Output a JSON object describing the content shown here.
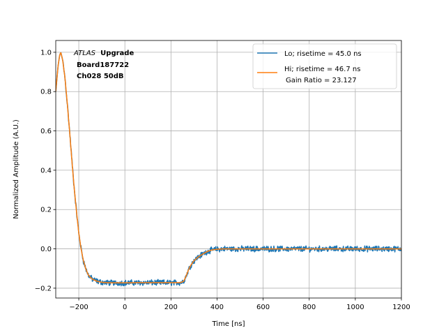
{
  "chart_data": {
    "type": "line",
    "xlabel": "Time [ns]",
    "ylabel": "Normalized Amplitude (A.U.)",
    "xlim": [
      -300,
      1200
    ],
    "ylim": [
      -0.25,
      1.06
    ],
    "xticks": [
      -200,
      0,
      200,
      400,
      600,
      800,
      1000,
      1200
    ],
    "yticks": [
      -0.2,
      0.0,
      0.2,
      0.4,
      0.6,
      0.8,
      1.0
    ],
    "xtick_labels": [
      "−200",
      "0",
      "200",
      "400",
      "600",
      "800",
      "1000",
      "1200"
    ],
    "ytick_labels": [
      "−0.2",
      "0.0",
      "0.2",
      "0.4",
      "0.6",
      "0.8",
      "1.0"
    ],
    "grid": true,
    "legend_position": "top-right",
    "annotation": {
      "experiment_italic": "ATLAS",
      "experiment_bold": "Upgrade",
      "line2": "Board187722",
      "line3": "Ch028 50dB"
    },
    "series": [
      {
        "name": "Lo; risetime = 45.0 ns",
        "color": "#1f77b4",
        "noisy": true,
        "x": [
          -300,
          -290,
          -283,
          -278,
          -270,
          -260,
          -250,
          -240,
          -230,
          -220,
          -210,
          -200,
          -190,
          -180,
          -170,
          -160,
          -150,
          -140,
          -120,
          -100,
          -80,
          -50,
          0,
          50,
          100,
          150,
          200,
          240,
          255,
          265,
          275,
          285,
          300,
          320,
          340,
          360,
          380,
          400,
          430,
          460,
          500,
          600,
          700,
          800,
          900,
          1000,
          1100,
          1200
        ],
        "y": [
          0.8,
          0.93,
          0.985,
          1.0,
          0.96,
          0.87,
          0.74,
          0.6,
          0.45,
          0.31,
          0.19,
          0.08,
          0.0,
          -0.06,
          -0.1,
          -0.13,
          -0.145,
          -0.155,
          -0.165,
          -0.17,
          -0.172,
          -0.173,
          -0.173,
          -0.172,
          -0.172,
          -0.172,
          -0.172,
          -0.172,
          -0.165,
          -0.14,
          -0.11,
          -0.085,
          -0.06,
          -0.04,
          -0.025,
          -0.012,
          -0.005,
          -0.002,
          0.0,
          0.0,
          0.0,
          0.0,
          0.0,
          0.0,
          0.0,
          0.0,
          0.0,
          0.0
        ]
      },
      {
        "name": "Hi; risetime = 46.7 ns",
        "name_line2": "Gain Ratio = 23.127",
        "color": "#ff7f0e",
        "noisy": false,
        "x": [
          -300,
          -290,
          -283,
          -278,
          -270,
          -260,
          -250,
          -240,
          -230,
          -220,
          -210,
          -200,
          -190,
          -180,
          -170,
          -160,
          -150,
          -140,
          -120,
          -100,
          -80,
          -50,
          0,
          50,
          100,
          150,
          200,
          240,
          255,
          265,
          275,
          285,
          300,
          320,
          340,
          360,
          380,
          400,
          430,
          460,
          500,
          600,
          700,
          800,
          900,
          1000,
          1100,
          1200
        ],
        "y": [
          0.8,
          0.93,
          0.985,
          1.0,
          0.96,
          0.87,
          0.74,
          0.6,
          0.45,
          0.31,
          0.19,
          0.08,
          0.0,
          -0.06,
          -0.1,
          -0.13,
          -0.145,
          -0.155,
          -0.165,
          -0.17,
          -0.172,
          -0.173,
          -0.173,
          -0.172,
          -0.172,
          -0.172,
          -0.172,
          -0.172,
          -0.165,
          -0.14,
          -0.11,
          -0.085,
          -0.06,
          -0.04,
          -0.025,
          -0.012,
          -0.005,
          -0.002,
          0.0,
          0.0,
          0.0,
          0.0,
          0.0,
          0.0,
          0.0,
          0.0,
          0.0,
          0.0
        ]
      }
    ]
  }
}
